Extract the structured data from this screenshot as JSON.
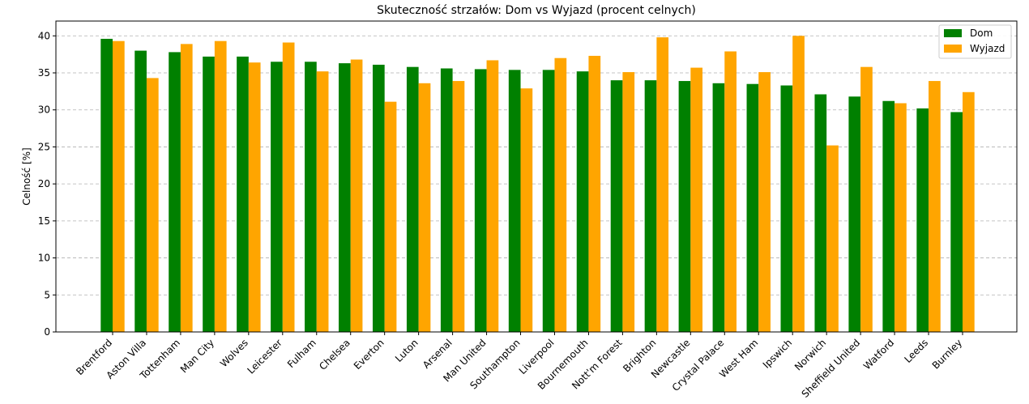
{
  "chart_data": {
    "type": "bar",
    "title": "Skuteczność strzałów: Dom vs Wyjazd (procent celnych)",
    "xlabel": "",
    "ylabel": "Celność [%]",
    "ylim": [
      0,
      42
    ],
    "yticks": [
      0,
      5,
      10,
      15,
      20,
      25,
      30,
      35,
      40
    ],
    "grid": "y-dashed",
    "legend_position": "top-right",
    "categories": [
      "Brentford",
      "Aston Villa",
      "Tottenham",
      "Man City",
      "Wolves",
      "Leicester",
      "Fulham",
      "Chelsea",
      "Everton",
      "Luton",
      "Arsenal",
      "Man United",
      "Southampton",
      "Liverpool",
      "Bournemouth",
      "Nott'm Forest",
      "Brighton",
      "Newcastle",
      "Crystal Palace",
      "West Ham",
      "Ipswich",
      "Norwich",
      "Sheffield United",
      "Watford",
      "Leeds",
      "Burnley"
    ],
    "series": [
      {
        "name": "Dom",
        "color": "#008000",
        "values": [
          39.6,
          38.0,
          37.8,
          37.2,
          37.2,
          36.5,
          36.5,
          36.3,
          36.1,
          35.8,
          35.6,
          35.5,
          35.4,
          35.4,
          35.2,
          34.0,
          34.0,
          33.9,
          33.6,
          33.5,
          33.3,
          32.1,
          31.8,
          31.2,
          30.2,
          29.7
        ]
      },
      {
        "name": "Wyjazd",
        "color": "#FFA500",
        "values": [
          39.3,
          34.3,
          38.9,
          39.3,
          36.4,
          39.1,
          35.2,
          36.8,
          31.1,
          33.6,
          33.9,
          36.7,
          32.9,
          37.0,
          37.3,
          35.1,
          39.8,
          35.7,
          37.9,
          35.1,
          40.0,
          25.2,
          35.8,
          30.9,
          33.9,
          32.4
        ]
      }
    ]
  }
}
